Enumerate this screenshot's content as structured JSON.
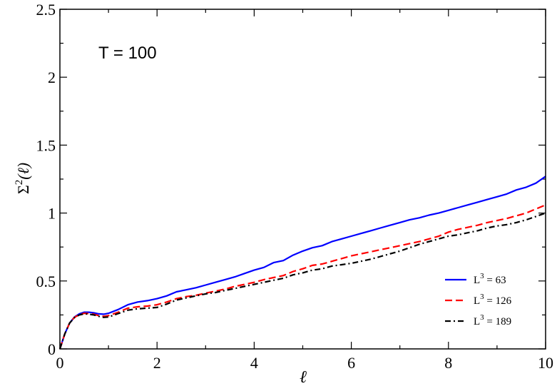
{
  "chart_data": {
    "type": "line",
    "annotation": "T = 100",
    "xlabel": "ℓ",
    "ylabel_base": "Σ",
    "ylabel_sup": "2",
    "ylabel_arg": "(ℓ)",
    "xlim": [
      0,
      10
    ],
    "ylim": [
      0,
      2.5
    ],
    "xticks": [
      0,
      2,
      4,
      6,
      8,
      10
    ],
    "xtick_labels": [
      "0",
      "2",
      "4",
      "6",
      "8",
      "10"
    ],
    "yticks": [
      0,
      0.5,
      1,
      1.5,
      2,
      2.5
    ],
    "ytick_labels": [
      "0",
      "0.5",
      "1",
      "1.5",
      "2",
      "2.5"
    ],
    "grid": false,
    "legend_position": "bottom-right",
    "series": [
      {
        "legend_base": "L",
        "legend_sup": "3",
        "legend_rest": " = 63",
        "color": "#0000ff",
        "dash": "solid",
        "x": [
          0,
          0.1,
          0.2,
          0.3,
          0.4,
          0.5,
          0.6,
          0.7,
          0.8,
          0.9,
          1.0,
          1.2,
          1.4,
          1.6,
          1.8,
          2.0,
          2.2,
          2.4,
          2.6,
          2.8,
          3.0,
          3.2,
          3.4,
          3.6,
          3.8,
          4.0,
          4.2,
          4.4,
          4.6,
          4.8,
          5.0,
          5.2,
          5.4,
          5.6,
          5.8,
          6.0,
          6.2,
          6.4,
          6.6,
          6.8,
          7.0,
          7.2,
          7.4,
          7.6,
          7.8,
          8.0,
          8.2,
          8.4,
          8.6,
          8.8,
          9.0,
          9.2,
          9.4,
          9.6,
          9.8,
          10.0
        ],
        "y": [
          0,
          0.11,
          0.19,
          0.235,
          0.258,
          0.27,
          0.27,
          0.265,
          0.258,
          0.255,
          0.262,
          0.29,
          0.325,
          0.345,
          0.355,
          0.37,
          0.39,
          0.42,
          0.435,
          0.45,
          0.47,
          0.49,
          0.51,
          0.53,
          0.555,
          0.58,
          0.6,
          0.635,
          0.65,
          0.69,
          0.72,
          0.745,
          0.76,
          0.79,
          0.81,
          0.83,
          0.85,
          0.87,
          0.89,
          0.91,
          0.93,
          0.95,
          0.965,
          0.985,
          1.0,
          1.02,
          1.04,
          1.06,
          1.08,
          1.1,
          1.12,
          1.14,
          1.17,
          1.19,
          1.22,
          1.27
        ]
      },
      {
        "legend_base": "L",
        "legend_sup": "3",
        "legend_rest": " = 126",
        "color": "#ff0000",
        "dash": "dashed",
        "x": [
          0,
          0.1,
          0.2,
          0.3,
          0.4,
          0.5,
          0.6,
          0.7,
          0.8,
          0.9,
          1.0,
          1.2,
          1.4,
          1.6,
          1.8,
          2.0,
          2.2,
          2.4,
          2.6,
          2.8,
          3.0,
          3.2,
          3.4,
          3.6,
          3.8,
          4.0,
          4.2,
          4.4,
          4.6,
          4.8,
          5.0,
          5.2,
          5.4,
          5.6,
          5.8,
          6.0,
          6.2,
          6.4,
          6.6,
          6.8,
          7.0,
          7.2,
          7.4,
          7.6,
          7.8,
          8.0,
          8.2,
          8.4,
          8.6,
          8.8,
          9.0,
          9.2,
          9.4,
          9.6,
          9.8,
          10.0
        ],
        "y": [
          0,
          0.11,
          0.19,
          0.232,
          0.252,
          0.262,
          0.26,
          0.255,
          0.245,
          0.24,
          0.245,
          0.27,
          0.3,
          0.31,
          0.315,
          0.325,
          0.345,
          0.37,
          0.385,
          0.395,
          0.41,
          0.425,
          0.44,
          0.46,
          0.475,
          0.49,
          0.51,
          0.525,
          0.54,
          0.57,
          0.59,
          0.615,
          0.625,
          0.645,
          0.665,
          0.685,
          0.7,
          0.715,
          0.73,
          0.745,
          0.76,
          0.775,
          0.79,
          0.81,
          0.83,
          0.86,
          0.88,
          0.895,
          0.91,
          0.93,
          0.945,
          0.96,
          0.98,
          1.0,
          1.03,
          1.06
        ]
      },
      {
        "legend_base": "L",
        "legend_sup": "3",
        "legend_rest": " = 189",
        "color": "#000000",
        "dash": "dashdot",
        "x": [
          0,
          0.1,
          0.2,
          0.3,
          0.4,
          0.5,
          0.6,
          0.7,
          0.8,
          0.9,
          1.0,
          1.2,
          1.4,
          1.6,
          1.8,
          2.0,
          2.2,
          2.4,
          2.6,
          2.8,
          3.0,
          3.2,
          3.4,
          3.6,
          3.8,
          4.0,
          4.2,
          4.4,
          4.6,
          4.8,
          5.0,
          5.2,
          5.4,
          5.6,
          5.8,
          6.0,
          6.2,
          6.4,
          6.6,
          6.8,
          7.0,
          7.2,
          7.4,
          7.6,
          7.8,
          8.0,
          8.2,
          8.4,
          8.6,
          8.8,
          9.0,
          9.2,
          9.4,
          9.6,
          9.8,
          10.0
        ],
        "y": [
          0,
          0.11,
          0.19,
          0.23,
          0.25,
          0.258,
          0.255,
          0.25,
          0.24,
          0.232,
          0.235,
          0.26,
          0.285,
          0.295,
          0.3,
          0.305,
          0.33,
          0.36,
          0.375,
          0.39,
          0.405,
          0.415,
          0.43,
          0.445,
          0.46,
          0.475,
          0.49,
          0.505,
          0.52,
          0.545,
          0.56,
          0.58,
          0.59,
          0.61,
          0.62,
          0.63,
          0.645,
          0.66,
          0.68,
          0.7,
          0.72,
          0.745,
          0.77,
          0.79,
          0.81,
          0.83,
          0.84,
          0.855,
          0.87,
          0.89,
          0.905,
          0.915,
          0.93,
          0.95,
          0.975,
          1.0
        ]
      }
    ]
  }
}
